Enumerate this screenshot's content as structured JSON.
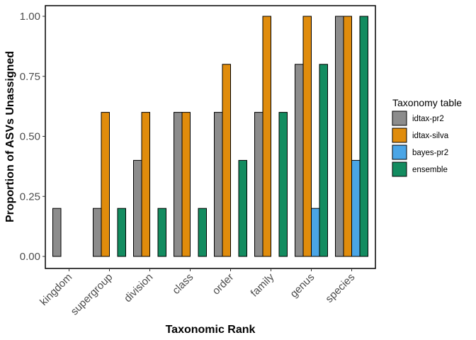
{
  "chart_data": {
    "type": "bar",
    "xlabel": "Taxonomic Rank",
    "ylabel": "Proportion of ASVs Unassigned",
    "ylim": [
      0,
      1
    ],
    "yticks": [
      "0.00",
      "0.25",
      "0.50",
      "0.75",
      "1.00"
    ],
    "ytick_values": [
      0,
      0.25,
      0.5,
      0.75,
      1.0
    ],
    "grid": false,
    "legend_position": "right",
    "legend_title": "Taxonomy table",
    "categories": [
      "kingdom",
      "supergroup",
      "division",
      "class",
      "order",
      "family",
      "genus",
      "species"
    ],
    "series": [
      {
        "name": "idtax-pr2",
        "color": "#8c8c8c",
        "values": [
          0.2,
          0.2,
          0.4,
          0.6,
          0.6,
          0.6,
          0.8,
          1.0
        ]
      },
      {
        "name": "idtax-silva",
        "color": "#e08c0c",
        "values": [
          0,
          0.6,
          0.6,
          0.6,
          0.8,
          1.0,
          1.0,
          1.0
        ]
      },
      {
        "name": "bayes-pr2",
        "color": "#4aa5e6",
        "values": [
          0,
          0,
          0,
          0,
          0,
          0,
          0.2,
          0.4
        ]
      },
      {
        "name": "ensemble",
        "color": "#138c60",
        "values": [
          0,
          0.2,
          0.2,
          0.2,
          0.4,
          0.6,
          0.8,
          1.0
        ]
      }
    ]
  }
}
